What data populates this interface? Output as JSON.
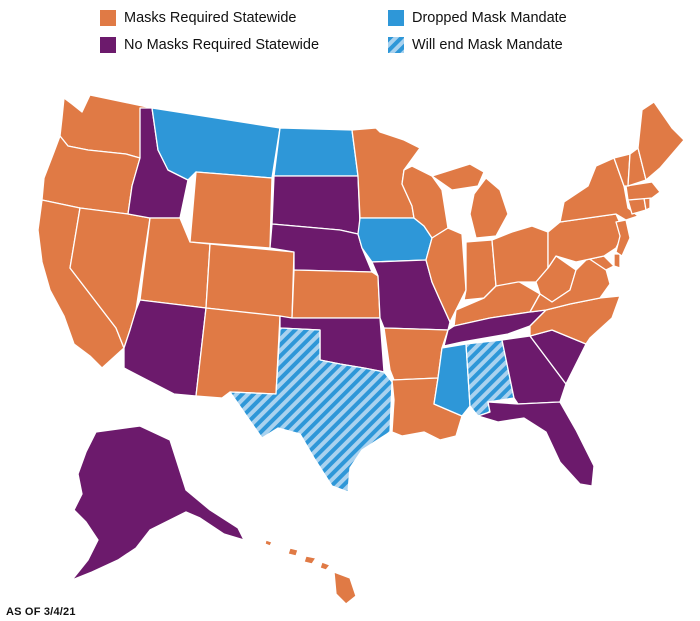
{
  "legend": [
    {
      "id": "masks_required",
      "label": "Masks Required Statewide",
      "color": "#E07A45"
    },
    {
      "id": "dropped",
      "label": "Dropped Mask Mandate",
      "color": "#2E97D8"
    },
    {
      "id": "no_masks",
      "label": "No Masks Required Statewide",
      "color": "#6C1A6C"
    },
    {
      "id": "will_end",
      "label": "Will end Mask Mandate",
      "color": "#2E97D8",
      "pattern": "diagonal-stripes"
    }
  ],
  "as_of": "AS OF 3/4/21",
  "state_status": {
    "WA": "masks_required",
    "OR": "masks_required",
    "CA": "masks_required",
    "NV": "masks_required",
    "ID": "no_masks",
    "MT": "dropped",
    "WY": "masks_required",
    "UT": "masks_required",
    "AZ": "no_masks",
    "CO": "masks_required",
    "NM": "masks_required",
    "ND": "dropped",
    "SD": "no_masks",
    "NE": "no_masks",
    "KS": "masks_required",
    "OK": "no_masks",
    "TX": "will_end",
    "MN": "masks_required",
    "IA": "dropped",
    "MO": "no_masks",
    "AR": "masks_required",
    "LA": "masks_required",
    "WI": "masks_required",
    "IL": "masks_required",
    "MS": "dropped",
    "MI": "masks_required",
    "IN": "masks_required",
    "KY": "masks_required",
    "TN": "no_masks",
    "AL": "will_end",
    "OH": "masks_required",
    "WV": "masks_required",
    "GA": "no_masks",
    "FL": "no_masks",
    "SC": "no_masks",
    "NC": "masks_required",
    "VA": "masks_required",
    "PA": "masks_required",
    "NY": "masks_required",
    "ME": "masks_required",
    "VT": "masks_required",
    "NH": "masks_required",
    "MA": "masks_required",
    "CT": "masks_required",
    "RI": "masks_required",
    "NJ": "masks_required",
    "DE": "masks_required",
    "MD": "masks_required",
    "AK": "no_masks",
    "HI": "masks_required"
  }
}
